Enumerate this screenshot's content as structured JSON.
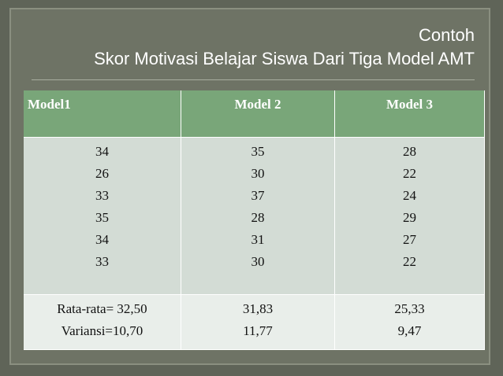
{
  "title": {
    "line1": "Contoh",
    "line2": "Skor Motivasi Belajar Siswa Dari Tiga Model AMT"
  },
  "table": {
    "header": [
      "Model1",
      "Model 2",
      "Model 3"
    ],
    "body": [
      [
        34,
        26,
        33,
        35,
        34,
        33
      ],
      [
        35,
        30,
        37,
        28,
        31,
        30
      ],
      [
        28,
        22,
        24,
        29,
        27,
        22
      ]
    ],
    "summary": [
      [
        "Rata-rata= 32,50",
        "Variansi=10,70"
      ],
      [
        "31,83",
        "11,77"
      ],
      [
        "25,33",
        "9,47"
      ]
    ]
  }
}
